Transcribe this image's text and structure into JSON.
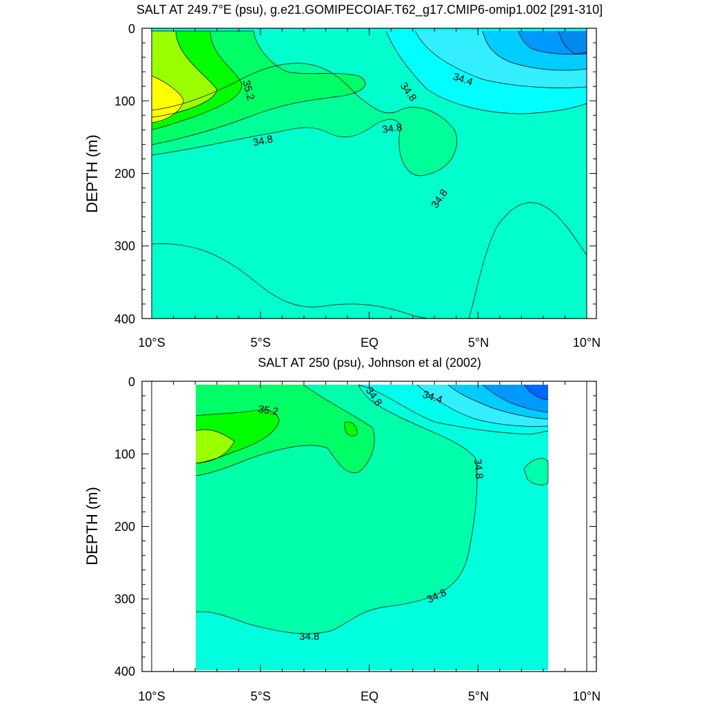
{
  "chart_data": [
    {
      "type": "heatmap",
      "title": "SALT AT 249.7°E (psu), g.e21.GOMIPECOIAF.T62_g17.CMIP6-omip1.002 [291-310]",
      "ylabel": "DEPTH (m)",
      "xlabel": "",
      "x_ticks": [
        "10°S",
        "5°S",
        "EQ",
        "5°N",
        "10°N"
      ],
      "y_ticks": [
        "0",
        "100",
        "200",
        "300",
        "400"
      ],
      "xlim": [
        -10,
        10
      ],
      "ylim": [
        400,
        0
      ],
      "contour_labels": [
        "35.2",
        "34.8",
        "34.8",
        "34.8",
        "34.4",
        "34.8"
      ],
      "colors": {
        "yellow": "#ffff00",
        "yellowgreen": "#9cff00",
        "green": "#00ff00",
        "lightgreen": "#00ff66",
        "aquamarine": "#00ffcc",
        "cyan": "#00ffff",
        "skyblue": "#33eeff",
        "lightblue": "#00ccff",
        "blue": "#0099ff",
        "deepblue": "#0066ff"
      }
    },
    {
      "type": "heatmap",
      "title": "SALT AT 250 (psu), Johnson et al (2002)",
      "ylabel": "DEPTH (m)",
      "xlabel": "",
      "x_ticks": [
        "10°S",
        "5°S",
        "EQ",
        "5°N",
        "10°N"
      ],
      "y_ticks": [
        "0",
        "100",
        "200",
        "300",
        "400"
      ],
      "xlim": [
        -10,
        10
      ],
      "ylim": [
        400,
        0
      ],
      "contour_labels": [
        "35.2",
        "34.8",
        "34.4",
        "34.8",
        "34.8",
        "34.8"
      ],
      "colors": {
        "yellowgreen": "#9cff00",
        "green": "#00ff00",
        "lightgreen": "#00ff66",
        "aquamarine": "#00ffcc",
        "cyan": "#00ffee",
        "lightblue": "#00ccff",
        "blue": "#0099ff",
        "deepblue": "#0066ff"
      }
    }
  ]
}
